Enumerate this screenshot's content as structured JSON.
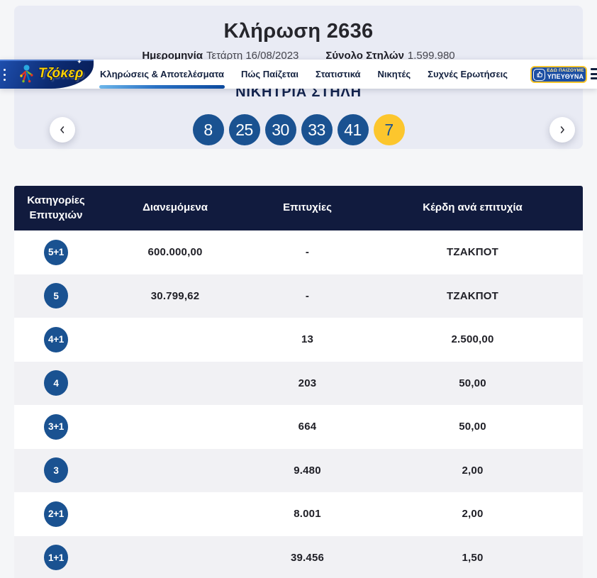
{
  "draw_panel": {
    "title": "Κλήρωση 2636",
    "date_label": "Ημερομηνία",
    "date_value": "Τετάρτη 16/08/2023",
    "columns_label": "Σύνολο Στηλών",
    "columns_value": "1.599.980"
  },
  "navbar": {
    "brand": "Τζόκερ",
    "items": [
      {
        "label": "Κληρώσεις & Αποτελέσματα",
        "active": true
      },
      {
        "label": "Πώς Παίζεται",
        "active": false
      },
      {
        "label": "Στατιστικά",
        "active": false
      },
      {
        "label": "Νικητές",
        "active": false
      },
      {
        "label": "Συχνές Ερωτήσεις",
        "active": false
      }
    ],
    "responsible_badge": {
      "line1": "ΕΔΩ ΠΑΙΖΟΥΜΕ",
      "line2": "ΥΠΕΥΘΥΝΑ"
    }
  },
  "winning_section": {
    "heading": "ΝΙΚΗΤΡΙΑ ΣΤΗΛΗ",
    "numbers": [
      "8",
      "25",
      "30",
      "33",
      "41"
    ],
    "joker": "7"
  },
  "results_table": {
    "headers": [
      "Κατηγορίες Επιτυχιών",
      "Διανεμόμενα",
      "Επιτυχίες",
      "Κέρδη ανά επιτυχία"
    ],
    "rows": [
      {
        "category": "5+1",
        "distributed": "600.000,00",
        "winners": "-",
        "prize": "ΤΖΑΚΠΟΤ"
      },
      {
        "category": "5",
        "distributed": "30.799,62",
        "winners": "-",
        "prize": "ΤΖΑΚΠΟΤ"
      },
      {
        "category": "4+1",
        "distributed": "",
        "winners": "13",
        "prize": "2.500,00"
      },
      {
        "category": "4",
        "distributed": "",
        "winners": "203",
        "prize": "50,00"
      },
      {
        "category": "3+1",
        "distributed": "",
        "winners": "664",
        "prize": "50,00"
      },
      {
        "category": "3",
        "distributed": "",
        "winners": "9.480",
        "prize": "2,00"
      },
      {
        "category": "2+1",
        "distributed": "",
        "winners": "8.001",
        "prize": "2,00"
      },
      {
        "category": "1+1",
        "distributed": "",
        "winners": "39.456",
        "prize": "1,50"
      }
    ]
  },
  "colors": {
    "page_bg": "#f5f6f8",
    "panel_bg": "#e9ebf4",
    "table_header_navy": "#111b3e",
    "ball_blue": "#1a5291",
    "ball_yellow": "#fcc62d",
    "brand_yellow": "#ffd200",
    "row_alt": "#f1f1f4"
  }
}
